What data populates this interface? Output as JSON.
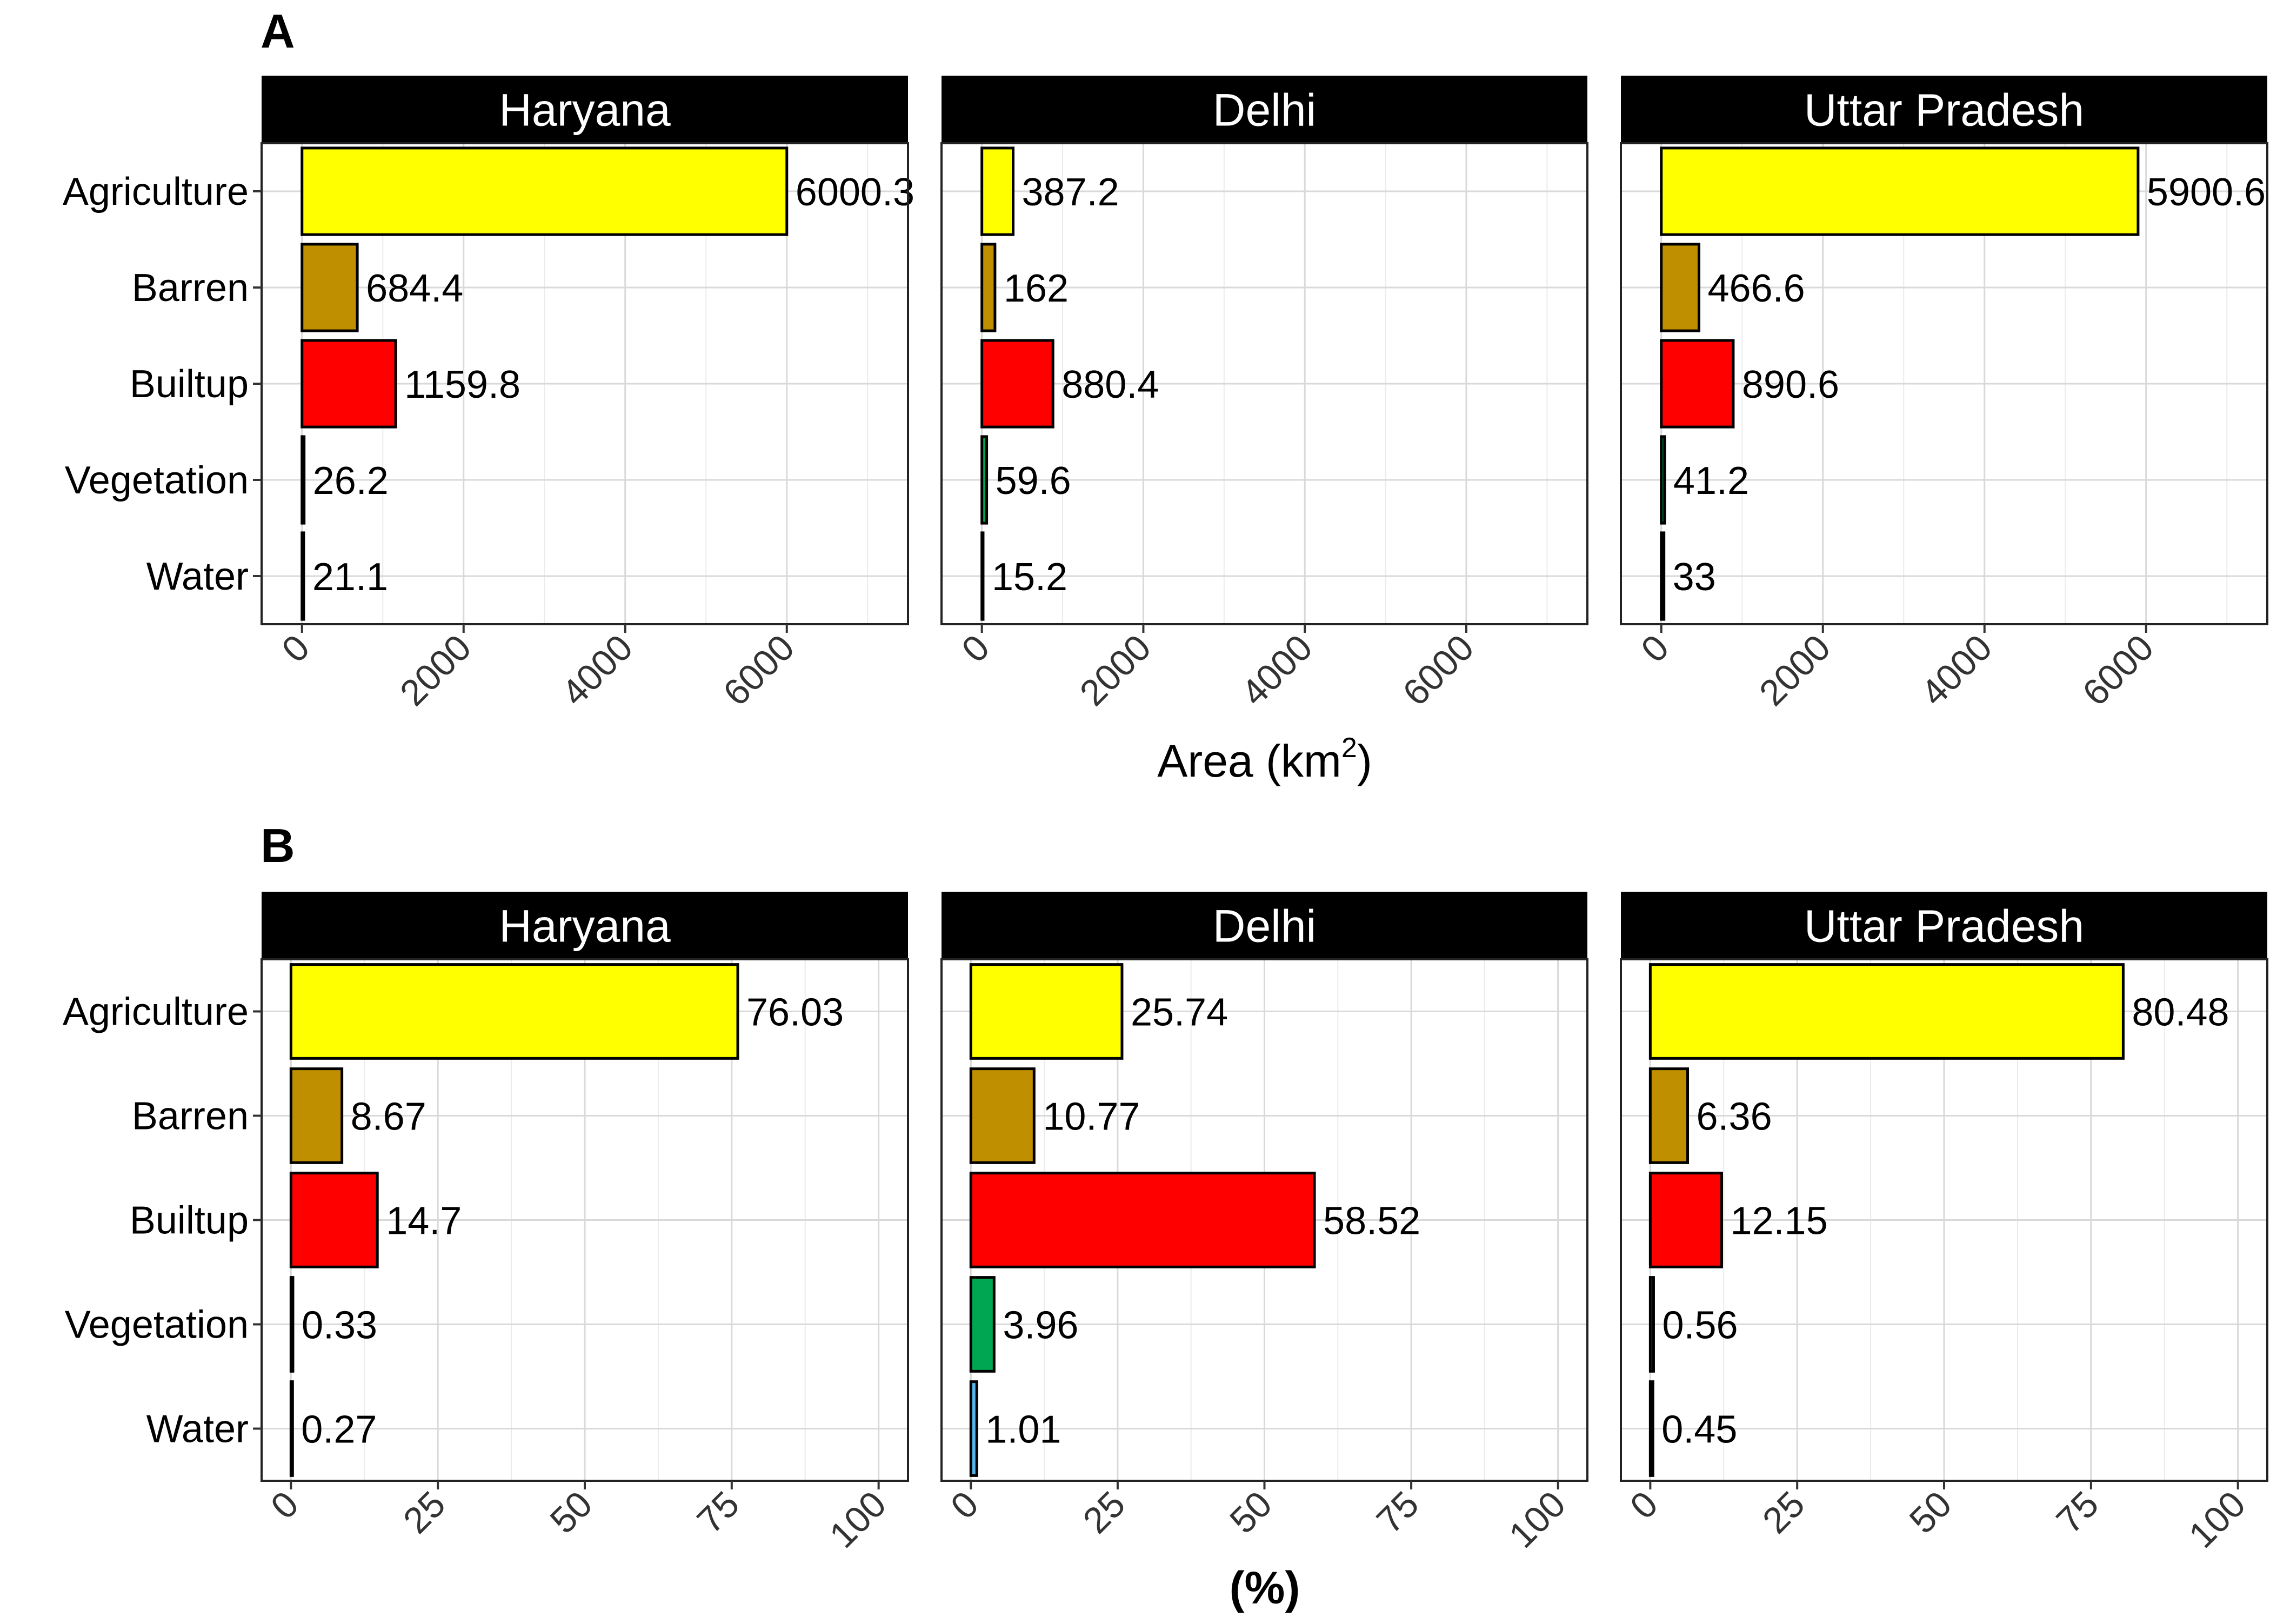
{
  "figure": {
    "panel_a_tag": "A",
    "panel_b_tag": "B",
    "panel_a_xlabel_main": "Area (km",
    "panel_a_xlabel_sup": "2",
    "panel_a_xlabel_close": ")",
    "panel_b_xlabel": "(%)"
  },
  "colors": {
    "Water": "#56B4E9",
    "Vegetation": "#00A651",
    "Builtup": "#FF0000",
    "Barren": "#BF8F00",
    "Agriculture": "#FFFF00",
    "bar_outline": "#000000",
    "strip_bg": "#000000",
    "strip_text": "#FFFFFF",
    "grid": "#D9D9D9"
  },
  "chart_data": [
    {
      "type": "bar",
      "orientation": "horizontal",
      "panel": "A",
      "categories": [
        "Water",
        "Vegetation",
        "Builtup",
        "Barren",
        "Agriculture"
      ],
      "xlim": [
        -500,
        7500
      ],
      "xticks": [
        0,
        2000,
        4000,
        6000
      ],
      "xtick_labels": [
        "0",
        "2000",
        "4000",
        "6000"
      ],
      "facets": [
        {
          "name": "Haryana",
          "values": [
            21.1,
            26.2,
            1159.8,
            684.4,
            6000.3
          ],
          "labels": [
            "21.1",
            "26.2",
            "1159.8",
            "684.4",
            "6000.3"
          ]
        },
        {
          "name": "Delhi",
          "values": [
            15.2,
            59.6,
            880.4,
            162,
            387.2
          ],
          "labels": [
            "15.2",
            "59.6",
            "880.4",
            "162",
            "387.2"
          ]
        },
        {
          "name": "Uttar Pradesh",
          "values": [
            33,
            41.2,
            890.6,
            466.6,
            5900.6
          ],
          "labels": [
            "33",
            "41.2",
            "890.6",
            "466.6",
            "5900.6"
          ]
        }
      ],
      "grid": true
    },
    {
      "type": "bar",
      "orientation": "horizontal",
      "panel": "B",
      "categories": [
        "Water",
        "Vegetation",
        "Builtup",
        "Barren",
        "Agriculture"
      ],
      "xlim": [
        -5,
        105
      ],
      "xticks": [
        0,
        25,
        50,
        75,
        100
      ],
      "xtick_labels": [
        "0",
        "25",
        "50",
        "75",
        "100"
      ],
      "facets": [
        {
          "name": "Haryana",
          "values": [
            0.27,
            0.33,
            14.7,
            8.67,
            76.03
          ],
          "labels": [
            "0.27",
            "0.33",
            "14.7",
            "8.67",
            "76.03"
          ]
        },
        {
          "name": "Delhi",
          "values": [
            1.01,
            3.96,
            58.52,
            10.77,
            25.74
          ],
          "labels": [
            "1.01",
            "3.96",
            "58.52",
            "10.77",
            "25.74"
          ]
        },
        {
          "name": "Uttar Pradesh",
          "values": [
            0.45,
            0.56,
            12.15,
            6.36,
            80.48
          ],
          "labels": [
            "0.45",
            "0.56",
            "12.15",
            "6.36",
            "80.48"
          ]
        }
      ],
      "grid": true
    }
  ]
}
